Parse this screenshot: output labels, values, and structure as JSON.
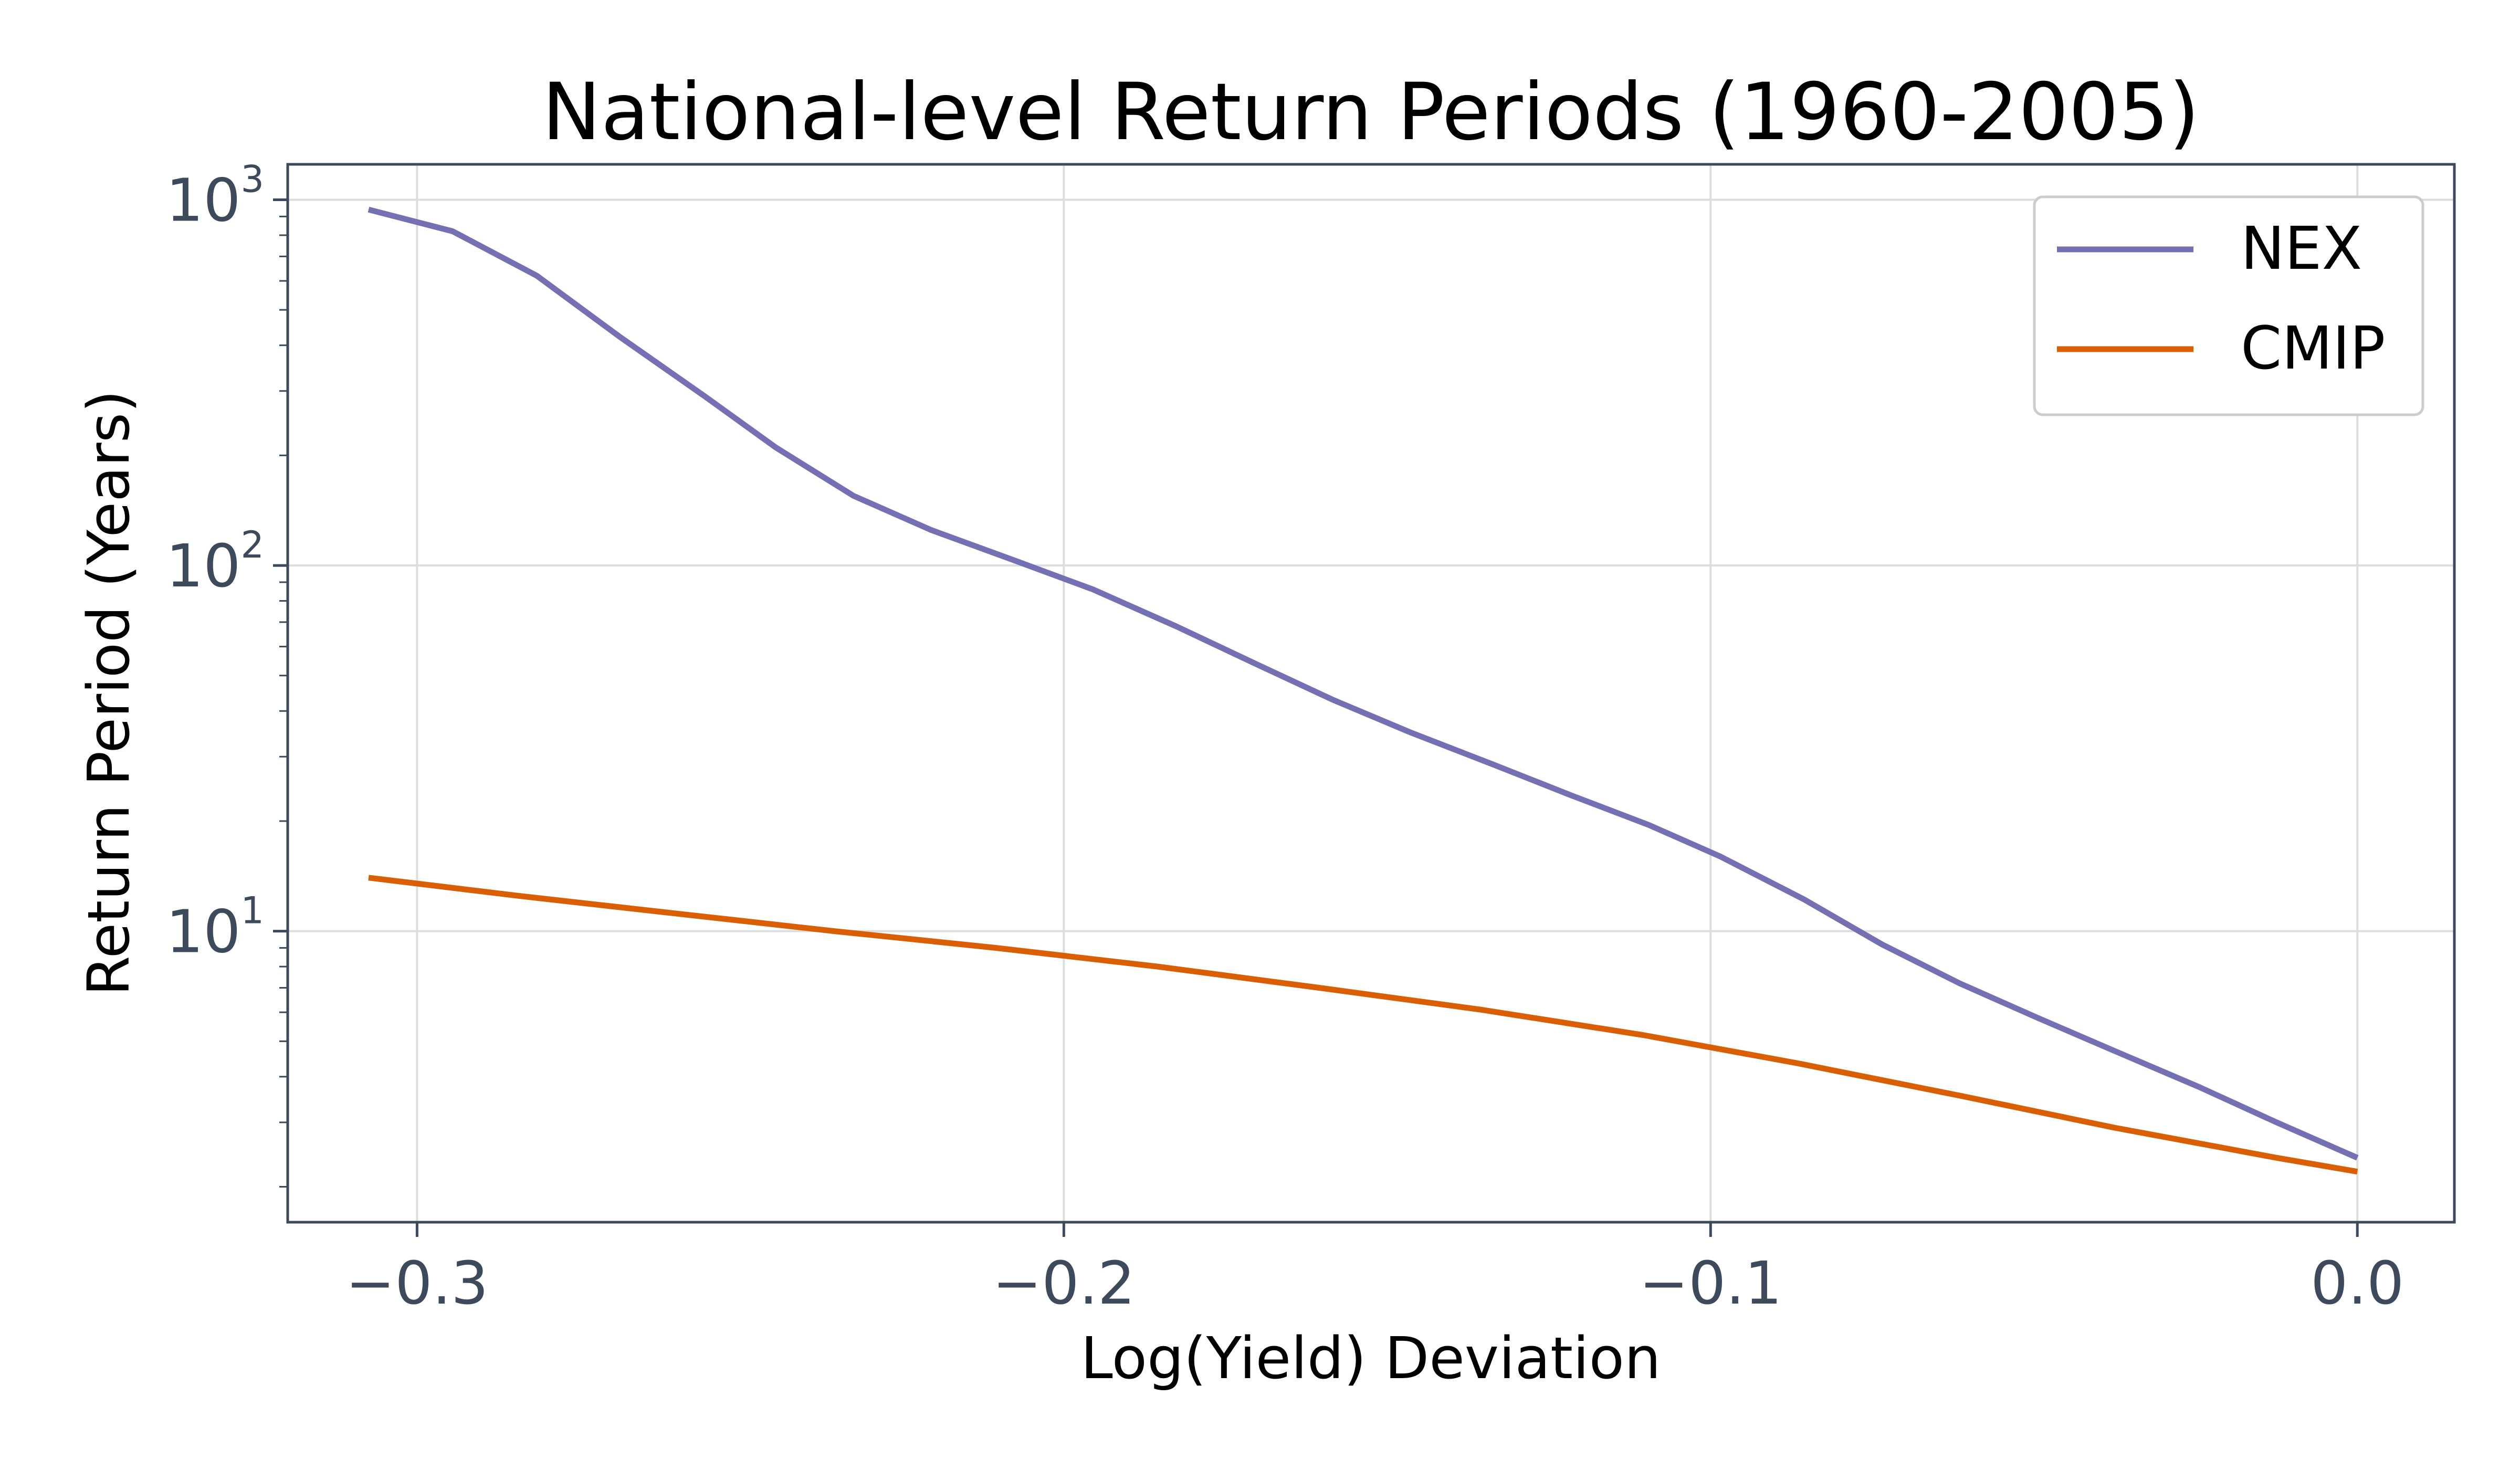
{
  "chart_data": {
    "type": "line",
    "title": "National-level Return Periods (1960-2005)",
    "xlabel": "Log(Yield) Deviation",
    "ylabel": "Return Period (Years)",
    "xlim": [
      -0.32,
      0.015
    ],
    "ylim": [
      1.6,
      1250
    ],
    "yscale": "log",
    "grid": true,
    "legend_position": "top-right",
    "x_ticks": [
      {
        "value": -0.3,
        "label": "−0.3"
      },
      {
        "value": -0.2,
        "label": "−0.2"
      },
      {
        "value": -0.1,
        "label": "−0.1"
      },
      {
        "value": 0.0,
        "label": "0.0"
      }
    ],
    "y_ticks": [
      {
        "value": 10,
        "base": "10",
        "exp": "1"
      },
      {
        "value": 100,
        "base": "10",
        "exp": "2"
      },
      {
        "value": 1000,
        "base": "10",
        "exp": "3"
      }
    ],
    "series": [
      {
        "name": "NEX",
        "color": "#7570b3",
        "points": [
          [
            -0.3075,
            940
          ],
          [
            -0.2945,
            820
          ],
          [
            -0.2815,
            620
          ],
          [
            -0.2685,
            420
          ],
          [
            -0.2555,
            290
          ],
          [
            -0.2445,
            210
          ],
          [
            -0.2325,
            155
          ],
          [
            -0.2205,
            125
          ],
          [
            -0.2075,
            103
          ],
          [
            -0.1955,
            86
          ],
          [
            -0.1825,
            68
          ],
          [
            -0.1705,
            54
          ],
          [
            -0.1585,
            43
          ],
          [
            -0.1465,
            35
          ],
          [
            -0.1335,
            28.5
          ],
          [
            -0.1215,
            23.5
          ],
          [
            -0.1095,
            19.5
          ],
          [
            -0.0985,
            16
          ],
          [
            -0.0855,
            12.2
          ],
          [
            -0.0735,
            9.2
          ],
          [
            -0.0615,
            7.2
          ],
          [
            -0.0495,
            5.8
          ],
          [
            -0.0375,
            4.7
          ],
          [
            -0.0245,
            3.75
          ],
          [
            -0.0125,
            3.0
          ],
          [
            0.0,
            2.4
          ]
        ]
      },
      {
        "name": "CMIP",
        "color": "#d95f02",
        "points": [
          [
            -0.3075,
            14
          ],
          [
            -0.2845,
            12.5
          ],
          [
            -0.2605,
            11.2
          ],
          [
            -0.2355,
            10.0
          ],
          [
            -0.2105,
            9.0
          ],
          [
            -0.1855,
            8.0
          ],
          [
            -0.1605,
            7.0
          ],
          [
            -0.1355,
            6.1
          ],
          [
            -0.1105,
            5.2
          ],
          [
            -0.0865,
            4.35
          ],
          [
            -0.0615,
            3.55
          ],
          [
            -0.0375,
            2.9
          ],
          [
            -0.0125,
            2.4
          ],
          [
            0.0,
            2.2
          ]
        ]
      }
    ]
  }
}
